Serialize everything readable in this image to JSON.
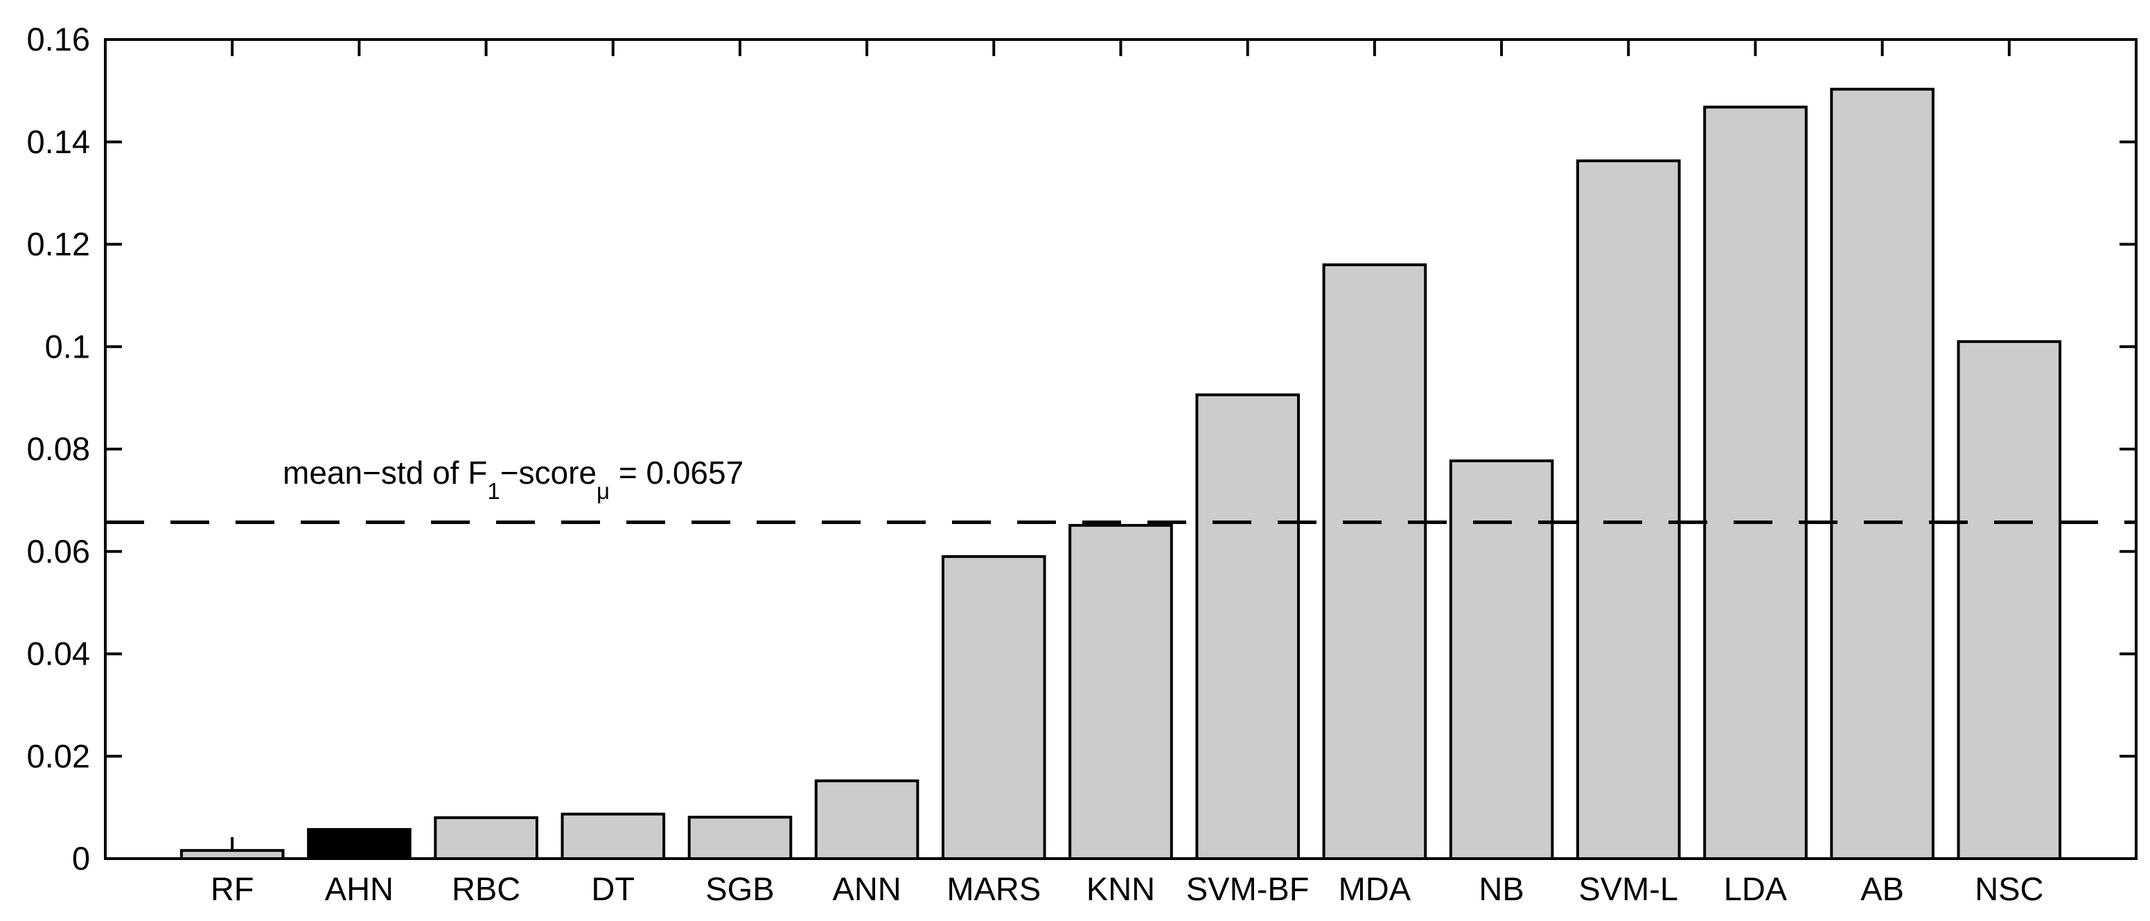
{
  "chart_data": {
    "type": "bar",
    "title": "",
    "xlabel": "",
    "ylabel": "",
    "grid": false,
    "legend": null,
    "categories": [
      "RF",
      "AHN",
      "RBC",
      "DT",
      "SGB",
      "ANN",
      "MARS",
      "KNN",
      "SVM-BF",
      "MDA",
      "NB",
      "SVM-L",
      "LDA",
      "AB",
      "NSC"
    ],
    "values": [
      0.0016,
      0.0057,
      0.008,
      0.0087,
      0.0081,
      0.0152,
      0.059,
      0.0651,
      0.0906,
      0.116,
      0.0777,
      0.1363,
      0.1468,
      0.1503,
      0.101
    ],
    "errors_plus": [
      0.0026,
      null,
      null,
      null,
      null,
      null,
      null,
      null,
      null,
      null,
      null,
      null,
      null,
      null,
      null
    ],
    "highlighted_category": "AHN",
    "highlight_index": 1,
    "bar_fill_color": "#cccccc",
    "highlight_fill_color": "#000000",
    "bar_edge_color": "#000000",
    "ylim": [
      0,
      0.16
    ],
    "xlim": [
      0,
      16
    ],
    "bar_width_fraction": 0.8,
    "y_tick_values": [
      0,
      0.02,
      0.04,
      0.06,
      0.08,
      0.1,
      0.12,
      0.14,
      0.16
    ],
    "y_tick_labels": [
      "0",
      "0.02",
      "0.04",
      "0.06",
      "0.08",
      "0.1",
      "0.12",
      "0.14",
      "0.16"
    ],
    "reference_line": {
      "value": 0.0657,
      "style": "dashed",
      "color": "#000000"
    },
    "annotation": {
      "full_text": "mean−std of F1−scoreμ = 0.0657",
      "part_main_1": "mean−std of F",
      "part_sub_1": "1",
      "part_main_2": "−score",
      "part_sub_2": "μ",
      "part_main_3": " = 0.0657"
    }
  }
}
